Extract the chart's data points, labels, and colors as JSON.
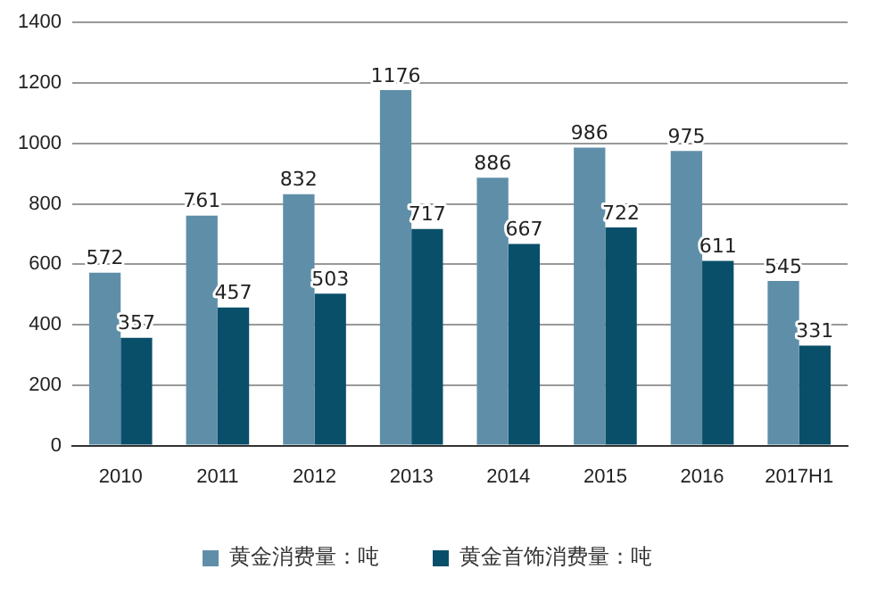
{
  "chart_data": {
    "type": "bar",
    "categories": [
      "2010",
      "2011",
      "2012",
      "2013",
      "2014",
      "2015",
      "2016",
      "2017H1"
    ],
    "series": [
      {
        "name": "黄金消费量：吨",
        "color": "#5f8fa8",
        "values": [
          572,
          761,
          832,
          1176,
          886,
          986,
          975,
          545
        ]
      },
      {
        "name": "黄金首饰消费量：吨",
        "color": "#0a4f6a",
        "values": [
          357,
          457,
          503,
          717,
          667,
          722,
          611,
          331
        ]
      }
    ],
    "ylim": [
      0,
      1400
    ],
    "yticks": [
      0,
      200,
      400,
      600,
      800,
      1000,
      1200,
      1400
    ],
    "grid": "y",
    "legend": "bottom",
    "data_labels": true
  }
}
